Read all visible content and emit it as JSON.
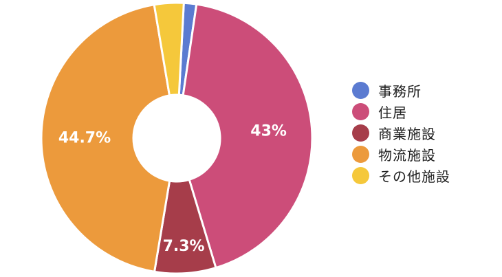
{
  "chart_data": {
    "type": "pie",
    "variant": "donut",
    "categories": [
      "事務所",
      "住居",
      "商業施設",
      "物流施設",
      "その他施設"
    ],
    "values": [
      1.5,
      43,
      7.3,
      44.7,
      3.5
    ],
    "data_labels": [
      "",
      "43%",
      "7.3%",
      "44.7%",
      ""
    ],
    "colors": [
      "#5b7bd1",
      "#cc4d79",
      "#a63d4a",
      "#ec9a3c",
      "#f5c83b"
    ],
    "legend_position": "right"
  }
}
